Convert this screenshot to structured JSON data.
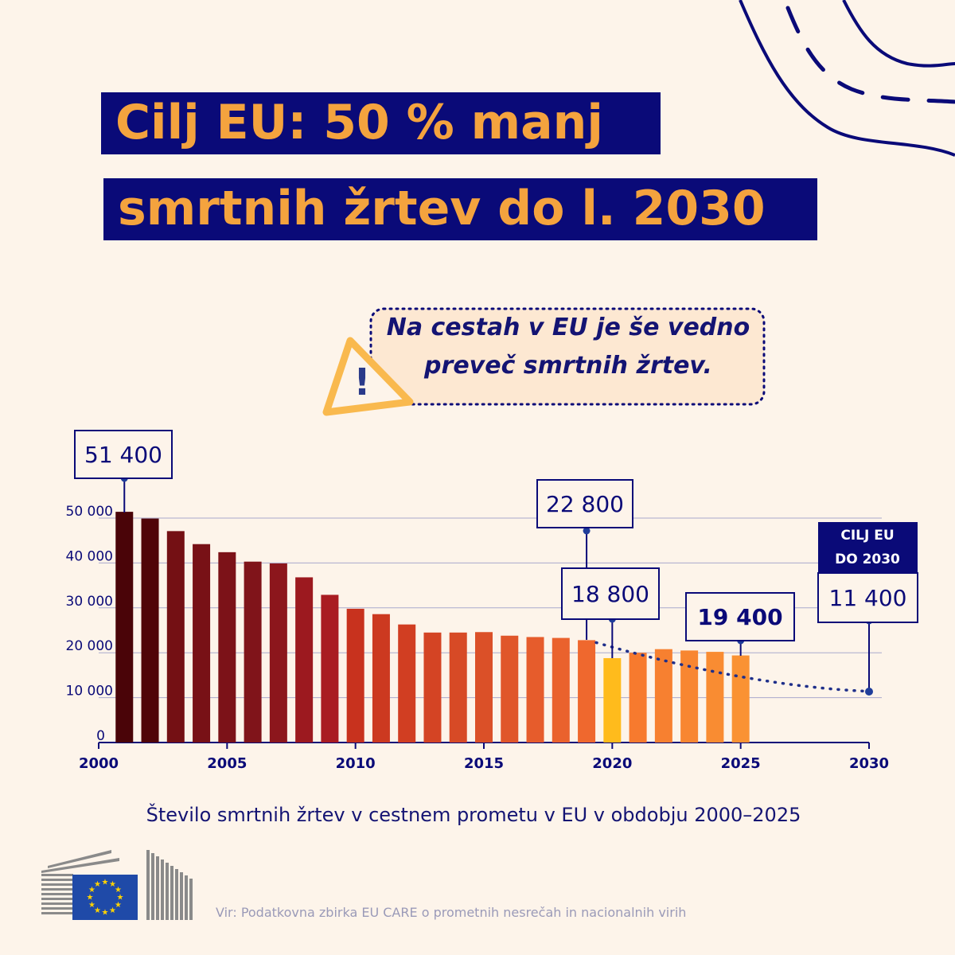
{
  "title": {
    "line1": "Cilj EU: 50 % manj",
    "line2": "smrtnih žrtev do l. 2030"
  },
  "callout": {
    "line1": "Na cestah v EU je še vedno",
    "line2": "preveč smrtnih žrtev."
  },
  "caption": "Število smrtnih žrtev v cestnem prometu v EU v obdobju 2000–2025",
  "source": "Vir: Podatkovna zbirka EU CARE o prometnih nesrečah in nacionalnih virih",
  "target_label": {
    "line1": "CILJ EU",
    "line2": "DO 2030"
  },
  "colors": {
    "background": "#FDF4EA",
    "navy": "#0A0A78",
    "orange_title": "#F4A33E",
    "warning": "#F9B94E"
  },
  "chart_data": {
    "type": "bar",
    "x": [
      2001,
      2002,
      2003,
      2004,
      2005,
      2006,
      2007,
      2008,
      2009,
      2010,
      2011,
      2012,
      2013,
      2014,
      2015,
      2016,
      2017,
      2018,
      2019,
      2020,
      2021,
      2022,
      2023,
      2024,
      2025
    ],
    "values": [
      51400,
      49900,
      47100,
      44200,
      42400,
      40300,
      39900,
      36800,
      32900,
      29800,
      28600,
      26300,
      24500,
      24500,
      24600,
      23800,
      23500,
      23300,
      22800,
      18800,
      20000,
      20800,
      20500,
      20200,
      19400
    ],
    "bar_colors": [
      "#4A0408",
      "#500508",
      "#741014",
      "#781116",
      "#7C1218",
      "#80141A",
      "#8C161C",
      "#9C191F",
      "#A91C22",
      "#C8321E",
      "#CC3920",
      "#D13E22",
      "#D44424",
      "#D74A26",
      "#DB5028",
      "#E0562A",
      "#E65C2C",
      "#EA622D",
      "#EF682E",
      "#FFBB1C",
      "#F77A2E",
      "#F78030",
      "#F88631",
      "#F98C32",
      "#FA9233"
    ],
    "trend": {
      "from": 2019,
      "to": 2030,
      "start_value": 22800,
      "end_value": 11400,
      "style": "dotted"
    },
    "annotations": [
      {
        "x": 2001,
        "value": 51400,
        "label": "51 400",
        "bold": false
      },
      {
        "x": 2019,
        "value": 22800,
        "label": "22 800",
        "bold": false
      },
      {
        "x": 2020,
        "value": 18800,
        "label": "18 800",
        "bold": false
      },
      {
        "x": 2025,
        "value": 19400,
        "label": "19 400",
        "bold": true
      },
      {
        "x": 2030,
        "value": 11400,
        "label": "11 400",
        "bold": false
      }
    ],
    "xlim": [
      2000,
      2030
    ],
    "ylim": [
      0,
      50000
    ],
    "yticks": [
      0,
      10000,
      20000,
      30000,
      40000,
      50000
    ],
    "ytick_labels": [
      "0",
      "10 000",
      "20 000",
      "30 000",
      "40 000",
      "50 000"
    ],
    "xticks": [
      2000,
      2005,
      2010,
      2015,
      2020,
      2025,
      2030
    ],
    "xtick_labels": [
      "2000",
      "2005",
      "2010",
      "2015",
      "2020",
      "2025",
      "2030"
    ],
    "grid": true,
    "title": "Število smrtnih žrtev v cestnem prometu v EU v obdobju 2000–2025",
    "xlabel": "",
    "ylabel": ""
  }
}
